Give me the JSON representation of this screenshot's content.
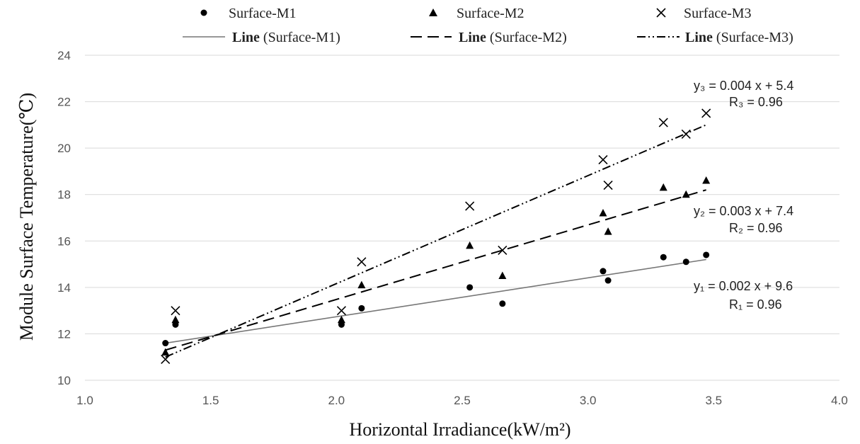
{
  "chart_data": {
    "type": "scatter",
    "xlabel": "Horizontal Irradiance(kW/m²)",
    "ylabel": "Module Surface Temperature(℃)",
    "xlim": [
      1.0,
      4.0
    ],
    "ylim": [
      10,
      24
    ],
    "x_ticks": [
      "1.0",
      "1.5",
      "2.0",
      "2.5",
      "3.0",
      "3.5",
      "4.0"
    ],
    "y_ticks": [
      "10",
      "12",
      "14",
      "16",
      "18",
      "20",
      "22",
      "24"
    ],
    "grid": "horizontal",
    "legend_position": "top",
    "series": [
      {
        "name": "Surface-M1",
        "marker": "circle",
        "points": [
          [
            1.32,
            11.6
          ],
          [
            1.36,
            12.4
          ],
          [
            2.02,
            12.4
          ],
          [
            2.1,
            13.1
          ],
          [
            2.53,
            14.0
          ],
          [
            2.66,
            13.3
          ],
          [
            3.06,
            14.7
          ],
          [
            3.08,
            14.3
          ],
          [
            3.3,
            15.3
          ],
          [
            3.39,
            15.1
          ],
          [
            3.47,
            15.4
          ]
        ],
        "trendline": {
          "label": "Line (Surface-M1)",
          "style": "solid",
          "x": [
            1.32,
            3.47
          ],
          "y": [
            11.6,
            15.2
          ]
        }
      },
      {
        "name": "Surface-M2",
        "marker": "triangle",
        "points": [
          [
            1.32,
            11.2
          ],
          [
            1.36,
            12.6
          ],
          [
            2.02,
            12.6
          ],
          [
            2.1,
            14.1
          ],
          [
            2.53,
            15.8
          ],
          [
            2.66,
            14.5
          ],
          [
            3.06,
            17.2
          ],
          [
            3.08,
            16.4
          ],
          [
            3.3,
            18.3
          ],
          [
            3.39,
            18.0
          ],
          [
            3.47,
            18.6
          ]
        ],
        "trendline": {
          "label": "Line (Surface-M2)",
          "style": "dashed",
          "x": [
            1.32,
            3.47
          ],
          "y": [
            11.3,
            18.2
          ]
        }
      },
      {
        "name": "Surface-M3",
        "marker": "x",
        "points": [
          [
            1.32,
            10.9
          ],
          [
            1.36,
            13.0
          ],
          [
            2.02,
            13.0
          ],
          [
            2.1,
            15.1
          ],
          [
            2.53,
            17.5
          ],
          [
            2.66,
            15.6
          ],
          [
            3.06,
            19.5
          ],
          [
            3.08,
            18.4
          ],
          [
            3.3,
            21.1
          ],
          [
            3.39,
            20.6
          ],
          [
            3.47,
            21.5
          ]
        ],
        "trendline": {
          "label": "Line (Surface-M3)",
          "style": "dash-dot-dot",
          "x": [
            1.32,
            3.47
          ],
          "y": [
            11.0,
            21.0
          ]
        }
      }
    ],
    "annotations": [
      {
        "line1": "y₃ = 0.004 x + 5.4",
        "line2": "R₃ = 0.96"
      },
      {
        "line1": "y₂ = 0.003 x + 7.4",
        "line2": "R₂ = 0.96"
      },
      {
        "line1": "y₁ = 0.002 x + 9.6",
        "line2": "R₁ = 0.96"
      }
    ],
    "legend": {
      "markers": [
        "Surface-M1",
        "Surface-M2",
        "Surface-M3"
      ],
      "lines": [
        {
          "bold": "Line",
          "rest": " (Surface-M1)"
        },
        {
          "bold": "Line",
          "rest": " (Surface-M2)"
        },
        {
          "bold": "Line",
          "rest": " (Surface-M3)"
        }
      ]
    }
  }
}
